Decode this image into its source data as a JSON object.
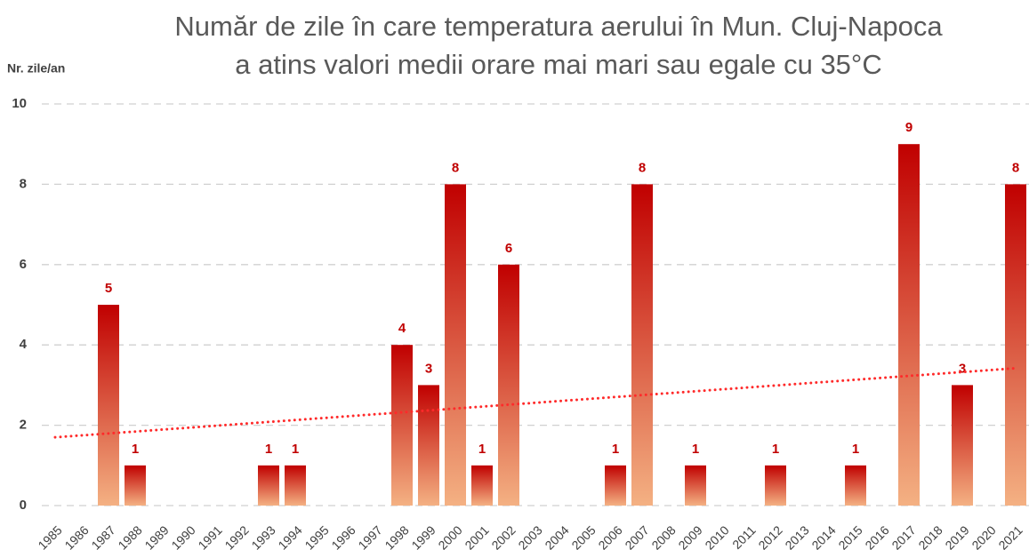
{
  "chart_data": {
    "type": "bar",
    "title": [
      "Număr de zile în care temperatura aerului în Mun. Cluj-Napoca",
      "a atins valori medii orare mai mari sau egale cu 35°C"
    ],
    "y_label": "Nr. zile/an",
    "categories": [
      "1985",
      "1986",
      "1987",
      "1988",
      "1989",
      "1990",
      "1991",
      "1992",
      "1993",
      "1994",
      "1995",
      "1996",
      "1997",
      "1998",
      "1999",
      "2000",
      "2001",
      "2002",
      "2003",
      "2004",
      "2005",
      "2006",
      "2007",
      "2008",
      "2009",
      "2010",
      "2011",
      "2012",
      "2013",
      "2014",
      "2015",
      "2016",
      "2017",
      "2018",
      "2019",
      "2020",
      "2021"
    ],
    "values": [
      0,
      0,
      5,
      1,
      0,
      0,
      0,
      0,
      1,
      1,
      0,
      0,
      0,
      4,
      3,
      8,
      1,
      6,
      0,
      0,
      0,
      1,
      8,
      0,
      1,
      0,
      0,
      1,
      0,
      0,
      1,
      0,
      9,
      0,
      3,
      0,
      8
    ],
    "color_top": "#c00000",
    "color_bottom": "#f4b183",
    "label_color": "#c00000",
    "trendline": {
      "values": [
        1.7,
        3.42
      ],
      "color": "#ff2a2a"
    },
    "ylim": [
      0,
      10
    ],
    "yticks": [
      0,
      2,
      4,
      6,
      8,
      10
    ],
    "grid": true
  }
}
